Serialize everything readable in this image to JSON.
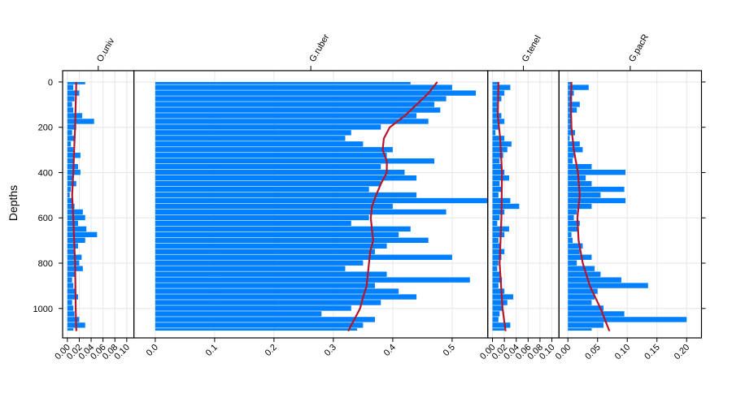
{
  "chart_data": {
    "type": "bar",
    "subtype": "stratigraphic horizontal bar plot with smoother",
    "ylabel": "Depths",
    "ylim": [
      -50,
      1130
    ],
    "y_reversed": true,
    "y_ticks": [
      0,
      200,
      400,
      600,
      800,
      1000
    ],
    "grid": true,
    "colors": {
      "bars": "#0080ff",
      "smoother": "#b5162b",
      "grid": "#e6e6e6"
    },
    "depths": [
      0,
      25,
      50,
      75,
      100,
      125,
      150,
      175,
      200,
      225,
      250,
      275,
      300,
      325,
      350,
      375,
      400,
      425,
      450,
      475,
      500,
      525,
      550,
      575,
      600,
      625,
      650,
      675,
      700,
      725,
      750,
      775,
      800,
      825,
      850,
      875,
      900,
      925,
      950,
      975,
      1000,
      1025,
      1050,
      1075,
      1100
    ],
    "panels": [
      {
        "name": "O.univ",
        "xlim": [
          -0.008,
          0.112
        ],
        "ticks": [
          0,
          0.02,
          0.04,
          0.06,
          0.08,
          0.1
        ],
        "tick_labels": [
          "0.00",
          "0.02",
          "0.04",
          "0.06",
          "0.08",
          "0.10"
        ],
        "values": [
          0.03,
          0.01,
          0.02,
          0.012,
          0.008,
          0.01,
          0.025,
          0.045,
          0.015,
          0.008,
          0.012,
          0.006,
          0.01,
          0.022,
          0.012,
          0.018,
          0.022,
          0.01,
          0.015,
          0.006,
          0.004,
          0.01,
          0.012,
          0.026,
          0.03,
          0.018,
          0.032,
          0.05,
          0.03,
          0.018,
          0.012,
          0.024,
          0.02,
          0.026,
          0.012,
          0.008,
          0.01,
          0.014,
          0.018,
          0.008,
          0.01,
          0.012,
          0.02,
          0.03,
          0.01
        ],
        "smooth": {
          "depth": [
            0,
            200,
            400,
            500,
            600,
            800,
            1000,
            1100
          ],
          "value": [
            0.015,
            0.013,
            0.01,
            0.008,
            0.01,
            0.013,
            0.014,
            0.015
          ]
        }
      },
      {
        "name": "G.ruber",
        "xlim": [
          -0.036,
          0.56
        ],
        "ticks": [
          0,
          0.1,
          0.2,
          0.3,
          0.4,
          0.5
        ],
        "tick_labels": [
          "0.0",
          "0.1",
          "0.2",
          "0.3",
          "0.4",
          "0.5"
        ],
        "values": [
          0.43,
          0.5,
          0.54,
          0.49,
          0.47,
          0.48,
          0.44,
          0.46,
          0.38,
          0.33,
          0.32,
          0.35,
          0.4,
          0.39,
          0.47,
          0.38,
          0.42,
          0.44,
          0.38,
          0.36,
          0.44,
          0.56,
          0.4,
          0.49,
          0.36,
          0.33,
          0.43,
          0.41,
          0.46,
          0.39,
          0.37,
          0.5,
          0.35,
          0.32,
          0.39,
          0.53,
          0.37,
          0.41,
          0.44,
          0.38,
          0.33,
          0.28,
          0.37,
          0.35,
          0.34
        ],
        "smooth": {
          "depth": [
            0,
            50,
            100,
            150,
            200,
            250,
            300,
            350,
            400,
            450,
            500,
            550,
            600,
            650,
            700,
            750,
            800,
            850,
            900,
            950,
            1000,
            1050,
            1100
          ],
          "value": [
            0.475,
            0.46,
            0.44,
            0.42,
            0.395,
            0.385,
            0.383,
            0.39,
            0.39,
            0.38,
            0.372,
            0.365,
            0.363,
            0.365,
            0.367,
            0.362,
            0.36,
            0.358,
            0.356,
            0.35,
            0.345,
            0.335,
            0.325
          ]
        }
      },
      {
        "name": "G.tenel",
        "xlim": [
          -0.008,
          0.112
        ],
        "ticks": [
          0,
          0.02,
          0.04,
          0.06,
          0.08,
          0.1
        ],
        "tick_labels": [
          "0.00",
          "0.02",
          "0.04",
          "0.06",
          "0.08",
          "0.10"
        ],
        "values": [
          0.01,
          0.03,
          0.02,
          0.015,
          0.008,
          0.01,
          0.015,
          0.02,
          0.012,
          0.005,
          0.02,
          0.032,
          0.025,
          0.018,
          0.012,
          0.015,
          0.02,
          0.028,
          0.012,
          0.015,
          0.01,
          0.03,
          0.045,
          0.02,
          0.012,
          0.008,
          0.028,
          0.02,
          0.01,
          0.012,
          0.02,
          0.015,
          0.01,
          0.008,
          0.012,
          0.016,
          0.01,
          0.02,
          0.035,
          0.025,
          0.018,
          0.012,
          0.01,
          0.03,
          0.02
        ],
        "smooth": {
          "depth": [
            0,
            150,
            250,
            400,
            600,
            800,
            1000,
            1100
          ],
          "value": [
            0.01,
            0.009,
            0.013,
            0.016,
            0.015,
            0.012,
            0.017,
            0.022
          ]
        }
      },
      {
        "name": "G.pacR",
        "xlim": [
          -0.015,
          0.225
        ],
        "ticks": [
          0,
          0.05,
          0.1,
          0.15,
          0.2
        ],
        "tick_labels": [
          "0.00",
          "0.05",
          "0.10",
          "0.15",
          "0.20"
        ],
        "values": [
          0.005,
          0.035,
          0.01,
          0.007,
          0.02,
          0.015,
          0.005,
          0.006,
          0.005,
          0.012,
          0.003,
          0.02,
          0.025,
          0.01,
          0.008,
          0.04,
          0.097,
          0.03,
          0.04,
          0.095,
          0.055,
          0.097,
          0.04,
          0.015,
          0.01,
          0.02,
          0.018,
          0.006,
          0.008,
          0.025,
          0.02,
          0.04,
          0.015,
          0.045,
          0.055,
          0.09,
          0.135,
          0.05,
          0.045,
          0.04,
          0.06,
          0.095,
          0.2,
          0.06,
          0.04
        ],
        "smooth": {
          "depth": [
            0,
            100,
            200,
            300,
            400,
            500,
            600,
            700,
            800,
            900,
            1000,
            1100
          ],
          "value": [
            0.006,
            0.005,
            0.006,
            0.01,
            0.017,
            0.02,
            0.016,
            0.018,
            0.025,
            0.037,
            0.055,
            0.07
          ]
        }
      }
    ]
  }
}
